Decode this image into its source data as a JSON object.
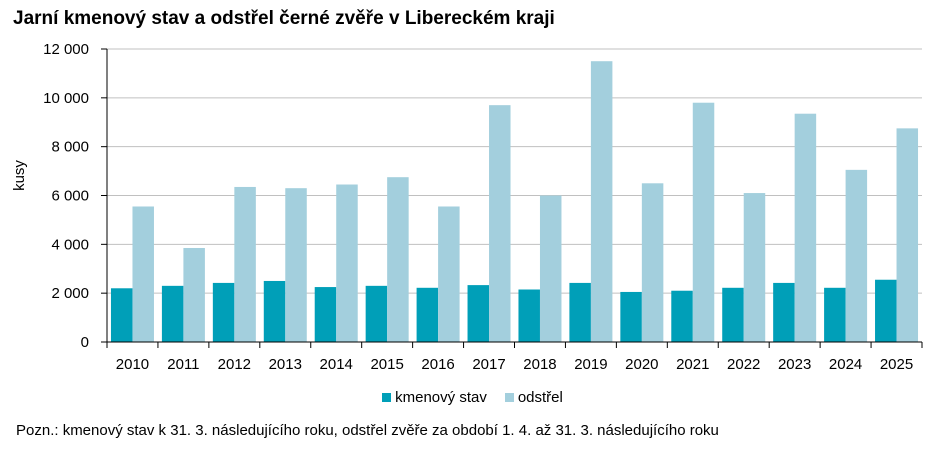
{
  "title": "Jarní kmenový stav a odstřel černé zvěře v Libereckém kraji",
  "note": "Pozn.: kmenový stav k 31. 3. následujícího roku, odstřel zvěře za období 1. 4. až 31. 3. následujícího roku",
  "colors": {
    "kmenovy": "#009fb8",
    "odstrel": "#a3cfdd",
    "grid": "#c0c0c0",
    "axis": "#000000"
  },
  "chart_data": {
    "type": "bar",
    "categories": [
      "2010",
      "2011",
      "2012",
      "2013",
      "2014",
      "2015",
      "2016",
      "2017",
      "2018",
      "2019",
      "2020",
      "2021",
      "2022",
      "2023",
      "2024",
      "2025"
    ],
    "series": [
      {
        "name": "kmenový stav",
        "values": [
          2200,
          2300,
          2420,
          2500,
          2250,
          2300,
          2220,
          2330,
          2150,
          2420,
          2050,
          2100,
          2220,
          2420,
          2220,
          2550
        ]
      },
      {
        "name": "odstřel",
        "values": [
          5550,
          3850,
          6350,
          6300,
          6450,
          6750,
          5550,
          9700,
          6000,
          11500,
          6500,
          9800,
          6100,
          9350,
          7050,
          8750
        ]
      }
    ],
    "ylabel": "kusy",
    "ylim": [
      0,
      12000
    ],
    "yticks": [
      0,
      2000,
      4000,
      6000,
      8000,
      10000,
      12000
    ],
    "ytick_labels": [
      "0",
      "2 000",
      "4 000",
      "6 000",
      "8 000",
      "10 000",
      "12 000"
    ],
    "grid": true,
    "legend_position": "bottom"
  }
}
